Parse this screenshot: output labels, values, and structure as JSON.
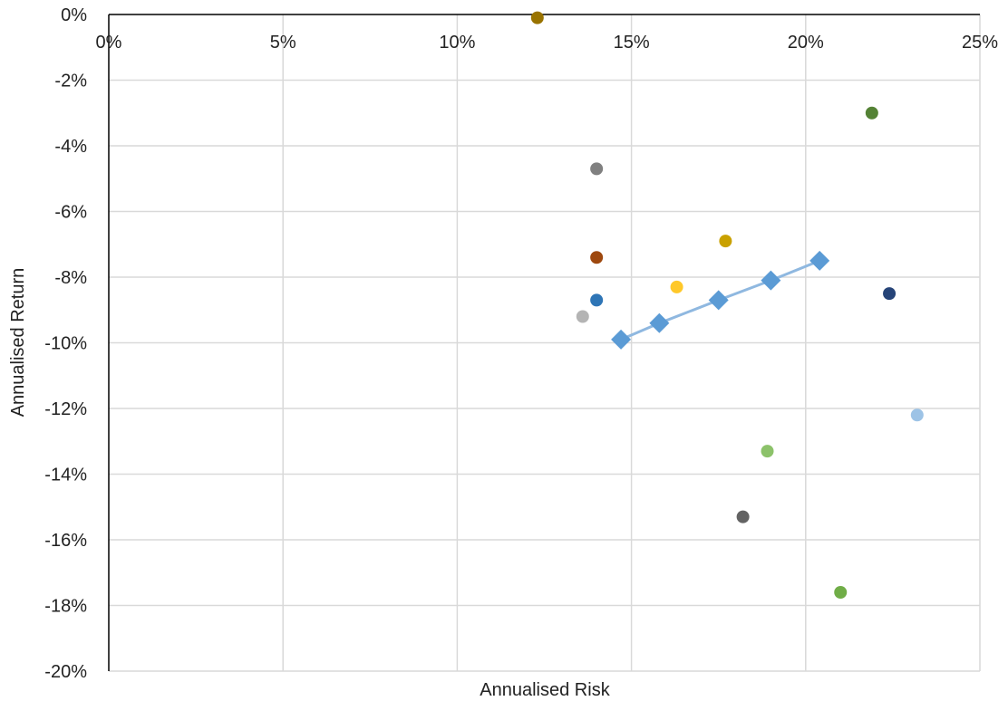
{
  "chart_data": {
    "type": "scatter",
    "title": "",
    "xlabel": "Annualised Risk",
    "ylabel": "Annualised Return",
    "xlim": [
      0,
      25
    ],
    "ylim": [
      -20,
      0
    ],
    "grid": true,
    "legend": "none",
    "x_ticks": [
      "0%",
      "5%",
      "10%",
      "15%",
      "20%",
      "25%"
    ],
    "y_ticks": [
      "0%",
      "-2%",
      "-4%",
      "-6%",
      "-8%",
      "-10%",
      "-12%",
      "-14%",
      "-16%",
      "-18%",
      "-20%"
    ],
    "frontier": {
      "color": "#5b9bd5",
      "line_color": "#8fb8e0",
      "points": [
        {
          "x": 14.7,
          "y": -9.9
        },
        {
          "x": 15.8,
          "y": -9.4
        },
        {
          "x": 17.5,
          "y": -8.7
        },
        {
          "x": 19.0,
          "y": -8.1
        },
        {
          "x": 20.4,
          "y": -7.5
        }
      ]
    },
    "assets": [
      {
        "x": 12.3,
        "y": -0.1,
        "color": "#997300"
      },
      {
        "x": 14.0,
        "y": -4.7,
        "color": "#808080"
      },
      {
        "x": 14.0,
        "y": -7.4,
        "color": "#9e480e"
      },
      {
        "x": 14.0,
        "y": -8.7,
        "color": "#2e75b6"
      },
      {
        "x": 13.6,
        "y": -9.2,
        "color": "#b4b4b4"
      },
      {
        "x": 16.3,
        "y": -8.3,
        "color": "#ffc829"
      },
      {
        "x": 17.7,
        "y": -6.9,
        "color": "#c9a100"
      },
      {
        "x": 21.9,
        "y": -3.0,
        "color": "#548235"
      },
      {
        "x": 22.4,
        "y": -8.5,
        "color": "#264478"
      },
      {
        "x": 23.2,
        "y": -12.2,
        "color": "#9dc3e6"
      },
      {
        "x": 18.9,
        "y": -13.3,
        "color": "#8cc26a"
      },
      {
        "x": 18.2,
        "y": -15.3,
        "color": "#636363"
      },
      {
        "x": 21.0,
        "y": -17.6,
        "color": "#70ad47"
      }
    ]
  }
}
